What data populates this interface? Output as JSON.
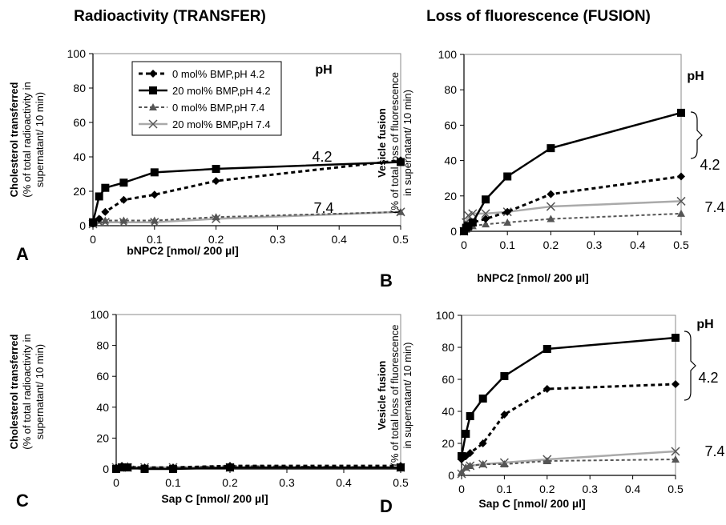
{
  "titles": {
    "left": "Radioactivity (TRANSFER)",
    "right": "Loss of fluorescence (FUSION)"
  },
  "colors": {
    "black": "#000000",
    "gray_dark": "#555555",
    "gray_light": "#aaaaaa",
    "axis": "#888888"
  },
  "legend": {
    "entries": [
      "0 mol% BMP,pH 4.2",
      "20 mol% BMP,pH 4.2",
      "0 mol% BMP,pH 7.4",
      "20 mol% BMP,pH 7.4"
    ]
  },
  "chart_data": [
    {
      "id": "A",
      "panel_letter": "A",
      "type": "line",
      "xlabel": "bNPC2 [nmol/ 200 µl]",
      "ylabel_line1": "Cholesterol transferred",
      "ylabel_line2": "(% of total radioactivity in",
      "ylabel_line3": "supernatant/ 10 min)",
      "xlim": [
        0,
        0.5
      ],
      "ylim": [
        0,
        100
      ],
      "x_ticks": [
        "0",
        "0.1",
        "0.2",
        "0.3",
        "0.4",
        "0.5"
      ],
      "y_ticks": [
        "0",
        "20",
        "40",
        "60",
        "80",
        "100"
      ],
      "ph_label": "pH",
      "ph_high": "4.2",
      "ph_low": "7.4",
      "x": [
        0,
        0.01,
        0.02,
        0.05,
        0.1,
        0.2,
        0.5
      ],
      "series": [
        {
          "name": "0 mol% BMP,pH 4.2",
          "values": [
            1,
            4,
            8,
            15,
            18,
            26,
            38
          ]
        },
        {
          "name": "20 mol% BMP,pH 4.2",
          "values": [
            2,
            17,
            22,
            25,
            31,
            33,
            37
          ]
        },
        {
          "name": "0 mol% BMP,pH 7.4",
          "values": [
            1,
            3,
            3,
            3,
            3,
            5,
            8
          ]
        },
        {
          "name": "20 mol% BMP,pH 7.4",
          "values": [
            1,
            2,
            2,
            2,
            2,
            4,
            8
          ]
        }
      ]
    },
    {
      "id": "B",
      "panel_letter": "B",
      "type": "line",
      "xlabel": "bNPC2 [nmol/ 200 µl]",
      "ylabel_line1": "Vesicle fusion",
      "ylabel_line2": "(% of total loss of fluorescence",
      "ylabel_line3": "in supernatant/ 10 min)",
      "xlim": [
        0,
        0.5
      ],
      "ylim": [
        0,
        100
      ],
      "x_ticks": [
        "0",
        "0.1",
        "0.2",
        "0.3",
        "0.4",
        "0.5"
      ],
      "y_ticks": [
        "0",
        "20",
        "40",
        "60",
        "80",
        "100"
      ],
      "ph_label": "pH",
      "ph_high": "4.2",
      "ph_low": "7.4",
      "x": [
        0,
        0.005,
        0.01,
        0.02,
        0.05,
        0.1,
        0.2,
        0.5
      ],
      "series": [
        {
          "name": "0 mol% BMP,pH 4.2",
          "values": [
            0,
            2,
            3,
            5,
            7,
            11,
            21,
            31
          ]
        },
        {
          "name": "20 mol% BMP,pH 4.2",
          "values": [
            0,
            2,
            3,
            5,
            18,
            31,
            47,
            67
          ]
        },
        {
          "name": "0 mol% BMP,pH 7.4",
          "values": [
            0,
            1,
            2,
            3,
            4,
            5,
            7,
            10
          ]
        },
        {
          "name": "20 mol% BMP,pH 7.4",
          "values": [
            0,
            5,
            9,
            10,
            10,
            11,
            14,
            17
          ]
        }
      ]
    },
    {
      "id": "C",
      "panel_letter": "C",
      "type": "line",
      "xlabel": "Sap C [nmol/ 200 µl]",
      "ylabel_line1": "Cholesterol transferred",
      "ylabel_line2": "(% of total radioactivity in",
      "ylabel_line3": "supernatant/ 10 min)",
      "xlim": [
        0,
        0.5
      ],
      "ylim": [
        0,
        100
      ],
      "x_ticks": [
        "0",
        "0.1",
        "0.2",
        "0.3",
        "0.4",
        "0.5"
      ],
      "y_ticks": [
        "0",
        "20",
        "40",
        "60",
        "80",
        "100"
      ],
      "ph_label": "",
      "ph_high": "",
      "ph_low": "",
      "x": [
        0,
        0.01,
        0.02,
        0.05,
        0.1,
        0.2,
        0.5
      ],
      "series": [
        {
          "name": "0 mol% BMP,pH 4.2",
          "values": [
            1,
            2,
            1,
            1,
            1,
            2,
            2
          ]
        },
        {
          "name": "20 mol% BMP,pH 4.2",
          "values": [
            0,
            1,
            1,
            0,
            0,
            1,
            1
          ]
        },
        {
          "name": "0 mol% BMP,pH 7.4",
          "values": [
            1,
            2,
            2,
            1,
            1,
            2,
            1
          ]
        },
        {
          "name": "20 mol% BMP,pH 7.4",
          "values": [
            1,
            1,
            1,
            1,
            1,
            1,
            1
          ]
        }
      ]
    },
    {
      "id": "D",
      "panel_letter": "D",
      "type": "line",
      "xlabel": "Sap C [nmol/ 200 µl]",
      "ylabel_line1": "Vesicle fusion",
      "ylabel_line2": "(% of total loss of fluorescence",
      "ylabel_line3": "in supernatant/ 10 min)",
      "xlim": [
        0,
        0.5
      ],
      "ylim": [
        0,
        100
      ],
      "x_ticks": [
        "0",
        "0.1",
        "0.2",
        "0.3",
        "0.4",
        "0.5"
      ],
      "y_ticks": [
        "0",
        "20",
        "40",
        "60",
        "80",
        "100"
      ],
      "ph_label": "pH",
      "ph_high": "4.2",
      "ph_low": "7.4",
      "x": [
        0,
        0.01,
        0.02,
        0.05,
        0.1,
        0.2,
        0.5
      ],
      "series": [
        {
          "name": "0 mol% BMP,pH 4.2",
          "values": [
            10,
            12,
            14,
            20,
            38,
            54,
            57
          ]
        },
        {
          "name": "20 mol% BMP,pH 4.2",
          "values": [
            12,
            26,
            37,
            48,
            62,
            79,
            86
          ]
        },
        {
          "name": "0 mol% BMP,pH 7.4",
          "values": [
            2,
            5,
            6,
            7,
            7,
            9,
            10
          ]
        },
        {
          "name": "20 mol% BMP,pH 7.4",
          "values": [
            1,
            5,
            6,
            7,
            8,
            10,
            15
          ]
        }
      ]
    }
  ]
}
